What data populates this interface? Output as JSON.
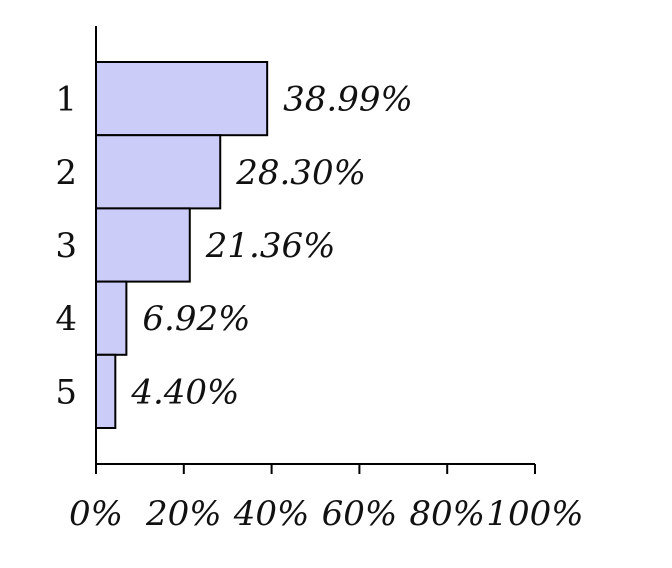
{
  "chart_data": {
    "type": "bar",
    "orientation": "horizontal",
    "categories": [
      "1",
      "2",
      "3",
      "4",
      "5"
    ],
    "values": [
      38.99,
      28.3,
      21.36,
      6.92,
      4.4
    ],
    "value_labels": [
      "38.99%",
      "28.30%",
      "21.36%",
      "6.92%",
      "4.40%"
    ],
    "xlim": [
      0,
      100
    ],
    "x_ticks": [
      "0%",
      "20%",
      "40%",
      "60%",
      "80%",
      "100%"
    ],
    "title": "",
    "xlabel": "",
    "ylabel": "",
    "grid": false,
    "legend": "none",
    "bar_color": "#ccccf9",
    "bar_edge_color": "#000000"
  }
}
